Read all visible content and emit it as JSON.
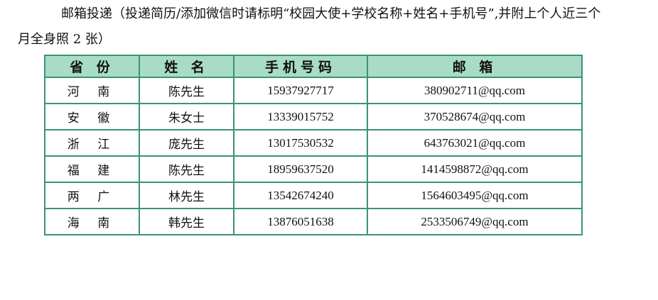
{
  "intro": "邮箱投递（投递简历/添加微信时请标明“校园大使+学校名称+姓名+手机号”,并附上个人近三个月全身照 2 张）",
  "table": {
    "headers": [
      "省 份",
      "姓  名",
      "手机号码",
      "邮 箱"
    ],
    "rows": [
      [
        "河 南",
        "陈先生",
        "15937927717",
        "380902711@qq.com"
      ],
      [
        "安 徽",
        "朱女士",
        "13339015752",
        "370528674@qq.com"
      ],
      [
        "浙 江",
        "庞先生",
        "13017530532",
        "643763021@qq.com"
      ],
      [
        "福 建",
        "陈先生",
        "18959637520",
        "1414598872@qq.com"
      ],
      [
        "两 广",
        "林先生",
        "13542674240",
        "1564603495@qq.com"
      ],
      [
        "海 南",
        "韩先生",
        "13876051638",
        "2533506749@qq.com"
      ]
    ]
  },
  "colors": {
    "border": "#3a9470",
    "header_bg": "#a9dcc7"
  }
}
